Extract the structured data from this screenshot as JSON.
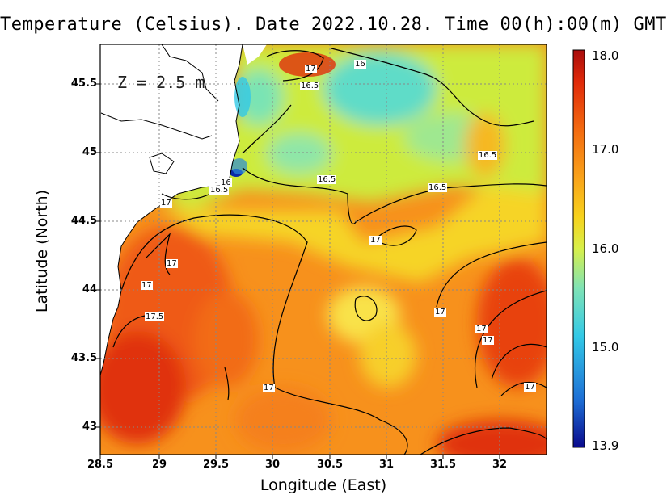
{
  "title": "Temperature (Celsius). Date 2022.10.28. Time 00(h):00(m) GMT",
  "depth_label": "Z = 2.5 m",
  "xlabel": "Longitude (East)",
  "ylabel": "Latitude (North)",
  "x_ticks": [
    "28.5",
    "29",
    "29.5",
    "30",
    "30.5",
    "31",
    "31.5",
    "32"
  ],
  "y_ticks": [
    "45.5",
    "45",
    "44.5",
    "44",
    "43.5",
    "43"
  ],
  "colorbar": {
    "max": "18.0",
    "t17": "17.0",
    "t16": "16.0",
    "t15": "15.0",
    "min": "13.9",
    "colors": [
      "#0a0a8c",
      "#1d6fd6",
      "#33c9e6",
      "#7fe3b6",
      "#d8f04a",
      "#f7d21c",
      "#f9a21a",
      "#f36a10",
      "#e02a0a",
      "#a80c0c"
    ]
  },
  "contour_labels": [
    {
      "text": "17"
    },
    {
      "text": "16"
    },
    {
      "text": "16.5"
    },
    {
      "text": "16.5"
    },
    {
      "text": "16"
    },
    {
      "text": "16.5"
    },
    {
      "text": "16.5"
    },
    {
      "text": "16.5"
    },
    {
      "text": "17"
    },
    {
      "text": "17"
    },
    {
      "text": "17"
    },
    {
      "text": "17"
    },
    {
      "text": "17.5"
    },
    {
      "text": "17"
    },
    {
      "text": "17"
    },
    {
      "text": "17"
    },
    {
      "text": "17"
    },
    {
      "text": "17"
    }
  ]
}
